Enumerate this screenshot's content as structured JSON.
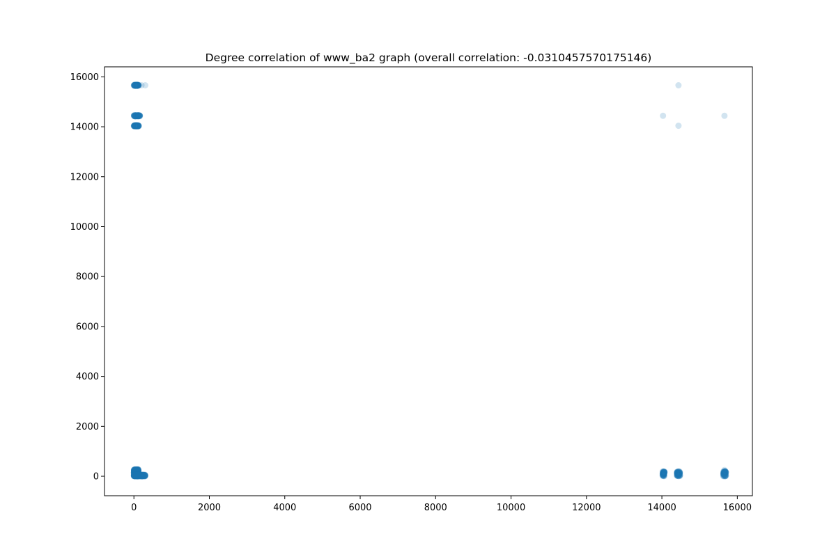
{
  "chart_data": {
    "type": "scatter",
    "title": "Degree correlation of www_ba2 graph (overall correlation: -0.0310457570175146)",
    "xlabel": "",
    "ylabel": "",
    "xlim": [
      -780,
      16400
    ],
    "ylim": [
      -780,
      16400
    ],
    "x_ticks": [
      0,
      2000,
      4000,
      6000,
      8000,
      10000,
      12000,
      14000,
      16000
    ],
    "y_ticks": [
      0,
      2000,
      4000,
      6000,
      8000,
      10000,
      12000,
      14000,
      16000
    ],
    "grid": false,
    "legend": "none",
    "marker_color": "#1f77b4",
    "marker_alpha": 0.2,
    "series": [
      {
        "clusters": [
          {
            "x_range": [
              0,
              130
            ],
            "y_range": [
              15640,
              15680
            ],
            "count": 90
          },
          {
            "x_range": [
              0,
              160
            ],
            "y_range": [
              14420,
              14460
            ],
            "count": 90
          },
          {
            "x_range": [
              0,
              130
            ],
            "y_range": [
              14020,
              14060
            ],
            "count": 90
          },
          {
            "x_range": [
              0,
              120
            ],
            "y_range": [
              0,
              280
            ],
            "count": 400
          },
          {
            "x_range": [
              0,
              300
            ],
            "y_range": [
              0,
              60
            ],
            "count": 200
          },
          {
            "x_range": [
              14020,
              14070
            ],
            "y_range": [
              0,
              200
            ],
            "count": 60
          },
          {
            "x_range": [
              14400,
              14480
            ],
            "y_range": [
              0,
              200
            ],
            "count": 80
          },
          {
            "x_range": [
              15630,
              15700
            ],
            "y_range": [
              0,
              200
            ],
            "count": 70
          }
        ],
        "points": [
          {
            "x": 300,
            "y": 15660
          },
          {
            "x": 200,
            "y": 15660
          },
          {
            "x": 14030,
            "y": 14440
          },
          {
            "x": 14440,
            "y": 15660
          },
          {
            "x": 14440,
            "y": 14040
          },
          {
            "x": 15660,
            "y": 14440
          },
          {
            "x": 15660,
            "y": 250
          }
        ]
      }
    ]
  }
}
